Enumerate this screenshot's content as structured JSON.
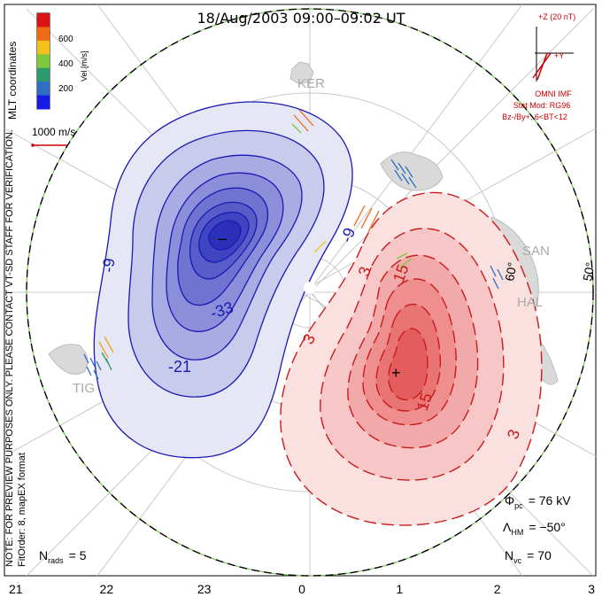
{
  "title": "18/Aug/2003 09:00–09:02 UT",
  "colorbar": {
    "label": "Vel [m/s]",
    "ticks": [
      "600",
      "400",
      "200"
    ],
    "colors": [
      "#d81414",
      "#ef6a14",
      "#f3c21a",
      "#7fc73b",
      "#2c9a6a",
      "#2e6fc2",
      "#1a1ae6"
    ]
  },
  "coordinate_label": "MLT coordinates",
  "velocity_scale": "1000 m/s",
  "imf": {
    "z_label": "+Z (20 nT)",
    "y_label": "+Y",
    "source": "OMNI IMF",
    "stat_mod": "Stat Mod: RG96",
    "condition": "Bz-/By+, 6<BT<12"
  },
  "preview_note": "NOTE: FOR PREVIEW PURPOSES ONLY. PLEASE CONTACT VT-SD STAFF FOR VERIFICATION.",
  "fit_order": "FitOrder: 8, mapEX format",
  "radars": [
    "KER",
    "SAN",
    "HAL",
    "TIG"
  ],
  "latitude_labels": [
    "60°",
    "50°"
  ],
  "mlt_labels": [
    "21",
    "22",
    "23",
    "0",
    "1",
    "2",
    "3"
  ],
  "contour_labels_negative": [
    "-9",
    "-33",
    "-21",
    "-9"
  ],
  "contour_labels_positive": [
    "3",
    "15",
    "15",
    "3",
    "3"
  ],
  "cell_markers": {
    "min": "–",
    "max": "+"
  },
  "stats": {
    "phi_pc": {
      "symbol": "Φ",
      "sub": "pc",
      "value": "= 76 kV"
    },
    "lambda_hm": {
      "symbol": "Λ",
      "sub": "HM",
      "value": "= −50°"
    },
    "n_vc": {
      "symbol": "N",
      "sub": "vc",
      "value": "= 70"
    },
    "n_rads": {
      "symbol": "N",
      "sub": "rads",
      "value": "= 5"
    }
  }
}
